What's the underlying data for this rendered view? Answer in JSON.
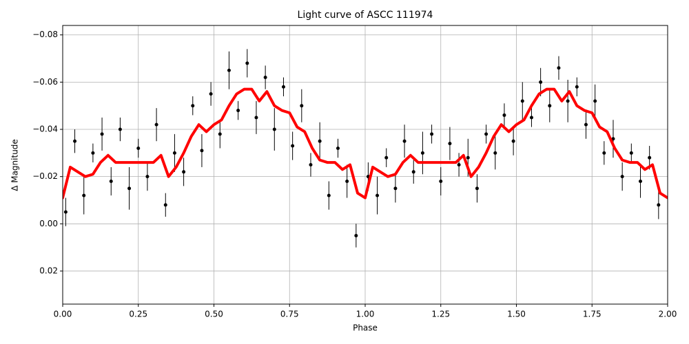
{
  "chart_data": {
    "type": "scatter",
    "title": "Light curve of ASCC 111974",
    "xlabel": "Phase",
    "ylabel": "Δ Magnitude",
    "xlim": [
      0,
      2
    ],
    "ylim": [
      0.034,
      -0.084
    ],
    "xticks": [
      {
        "value": 0,
        "label": "0.00"
      },
      {
        "value": 0.25,
        "label": "0.25"
      },
      {
        "value": 0.5,
        "label": "0.50"
      },
      {
        "value": 0.75,
        "label": "0.75"
      },
      {
        "value": 1,
        "label": "1.00"
      },
      {
        "value": 1.25,
        "label": "1.25"
      },
      {
        "value": 1.5,
        "label": "1.50"
      },
      {
        "value": 1.75,
        "label": "1.75"
      },
      {
        "value": 2,
        "label": "2.00"
      }
    ],
    "yticks": [
      {
        "value": -0.08,
        "label": "−0.08"
      },
      {
        "value": -0.06,
        "label": "−0.06"
      },
      {
        "value": -0.04,
        "label": "−0.04"
      },
      {
        "value": -0.02,
        "label": "−0.02"
      },
      {
        "value": 0,
        "label": "0.00"
      },
      {
        "value": 0.02,
        "label": "0.02"
      }
    ],
    "grid": true,
    "series": [
      {
        "kind": "errorbar",
        "color": "#000000",
        "x": [
          0.01,
          0.04,
          0.07,
          0.1,
          0.13,
          0.16,
          0.19,
          0.22,
          0.25,
          0.28,
          0.31,
          0.34,
          0.37,
          0.4,
          0.43,
          0.46,
          0.49,
          0.52,
          0.55,
          0.58,
          0.61,
          0.64,
          0.67,
          0.7,
          0.73,
          0.76,
          0.79,
          0.82,
          0.85,
          0.88,
          0.91,
          0.94,
          0.97,
          1.01,
          1.04,
          1.07,
          1.1,
          1.13,
          1.16,
          1.19,
          1.22,
          1.25,
          1.28,
          1.31,
          1.34,
          1.37,
          1.4,
          1.43,
          1.46,
          1.49,
          1.52,
          1.55,
          1.58,
          1.61,
          1.64,
          1.67,
          1.7,
          1.73,
          1.76,
          1.79,
          1.82,
          1.85,
          1.88,
          1.91,
          1.94,
          1.97
        ],
        "values": [
          -0.005,
          -0.035,
          -0.012,
          -0.03,
          -0.038,
          -0.018,
          -0.04,
          -0.015,
          -0.032,
          -0.02,
          -0.042,
          -0.008,
          -0.03,
          -0.022,
          -0.05,
          -0.031,
          -0.055,
          -0.038,
          -0.065,
          -0.048,
          -0.068,
          -0.045,
          -0.062,
          -0.04,
          -0.058,
          -0.033,
          -0.05,
          -0.025,
          -0.035,
          -0.012,
          -0.032,
          -0.018,
          0.005,
          -0.02,
          -0.012,
          -0.028,
          -0.015,
          -0.035,
          -0.022,
          -0.03,
          -0.038,
          -0.018,
          -0.034,
          -0.025,
          -0.028,
          -0.015,
          -0.038,
          -0.03,
          -0.046,
          -0.035,
          -0.052,
          -0.045,
          -0.06,
          -0.05,
          -0.066,
          -0.052,
          -0.058,
          -0.042,
          -0.052,
          -0.03,
          -0.036,
          -0.02,
          -0.03,
          -0.018,
          -0.028,
          -0.008
        ],
        "errors": [
          0.006,
          0.005,
          0.008,
          0.004,
          0.007,
          0.006,
          0.005,
          0.009,
          0.004,
          0.006,
          0.007,
          0.005,
          0.008,
          0.006,
          0.004,
          0.007,
          0.005,
          0.006,
          0.008,
          0.004,
          0.006,
          0.007,
          0.005,
          0.009,
          0.004,
          0.006,
          0.007,
          0.005,
          0.008,
          0.006,
          0.004,
          0.007,
          0.005,
          0.006,
          0.008,
          0.004,
          0.006,
          0.007,
          0.005,
          0.009,
          0.004,
          0.006,
          0.007,
          0.005,
          0.008,
          0.006,
          0.004,
          0.007,
          0.005,
          0.006,
          0.008,
          0.004,
          0.006,
          0.007,
          0.005,
          0.009,
          0.004,
          0.006,
          0.007,
          0.005,
          0.008,
          0.006,
          0.004,
          0.007,
          0.005,
          0.006
        ]
      },
      {
        "kind": "line",
        "color": "#ff0000",
        "x": [
          0,
          0.025,
          0.05,
          0.075,
          0.1,
          0.125,
          0.15,
          0.175,
          0.2,
          0.225,
          0.25,
          0.275,
          0.3,
          0.325,
          0.35,
          0.375,
          0.4,
          0.425,
          0.45,
          0.475,
          0.5,
          0.525,
          0.55,
          0.575,
          0.6,
          0.625,
          0.65,
          0.675,
          0.7,
          0.725,
          0.75,
          0.775,
          0.8,
          0.825,
          0.85,
          0.875,
          0.9,
          0.925,
          0.95,
          0.975,
          1,
          1.025,
          1.05,
          1.075,
          1.1,
          1.125,
          1.15,
          1.175,
          1.2,
          1.225,
          1.25,
          1.275,
          1.3,
          1.325,
          1.35,
          1.375,
          1.4,
          1.425,
          1.45,
          1.475,
          1.5,
          1.525,
          1.55,
          1.575,
          1.6,
          1.625,
          1.65,
          1.675,
          1.7,
          1.725,
          1.75,
          1.775,
          1.8,
          1.825,
          1.85,
          1.875,
          1.9,
          1.925,
          1.95,
          1.975,
          2
        ],
        "values": [
          -0.011,
          -0.024,
          -0.022,
          -0.02,
          -0.021,
          -0.026,
          -0.029,
          -0.026,
          -0.026,
          -0.026,
          -0.026,
          -0.026,
          -0.026,
          -0.029,
          -0.02,
          -0.024,
          -0.03,
          -0.037,
          -0.042,
          -0.039,
          -0.042,
          -0.044,
          -0.05,
          -0.055,
          -0.057,
          -0.057,
          -0.052,
          -0.056,
          -0.05,
          -0.048,
          -0.047,
          -0.041,
          -0.039,
          -0.032,
          -0.027,
          -0.026,
          -0.026,
          -0.023,
          -0.025,
          -0.013,
          -0.011,
          -0.024,
          -0.022,
          -0.02,
          -0.021,
          -0.026,
          -0.029,
          -0.026,
          -0.026,
          -0.026,
          -0.026,
          -0.026,
          -0.026,
          -0.029,
          -0.02,
          -0.024,
          -0.03,
          -0.037,
          -0.042,
          -0.039,
          -0.042,
          -0.044,
          -0.05,
          -0.055,
          -0.057,
          -0.057,
          -0.052,
          -0.056,
          -0.05,
          -0.048,
          -0.047,
          -0.041,
          -0.039,
          -0.032,
          -0.027,
          -0.026,
          -0.026,
          -0.023,
          -0.025,
          -0.013,
          -0.011
        ]
      }
    ]
  }
}
